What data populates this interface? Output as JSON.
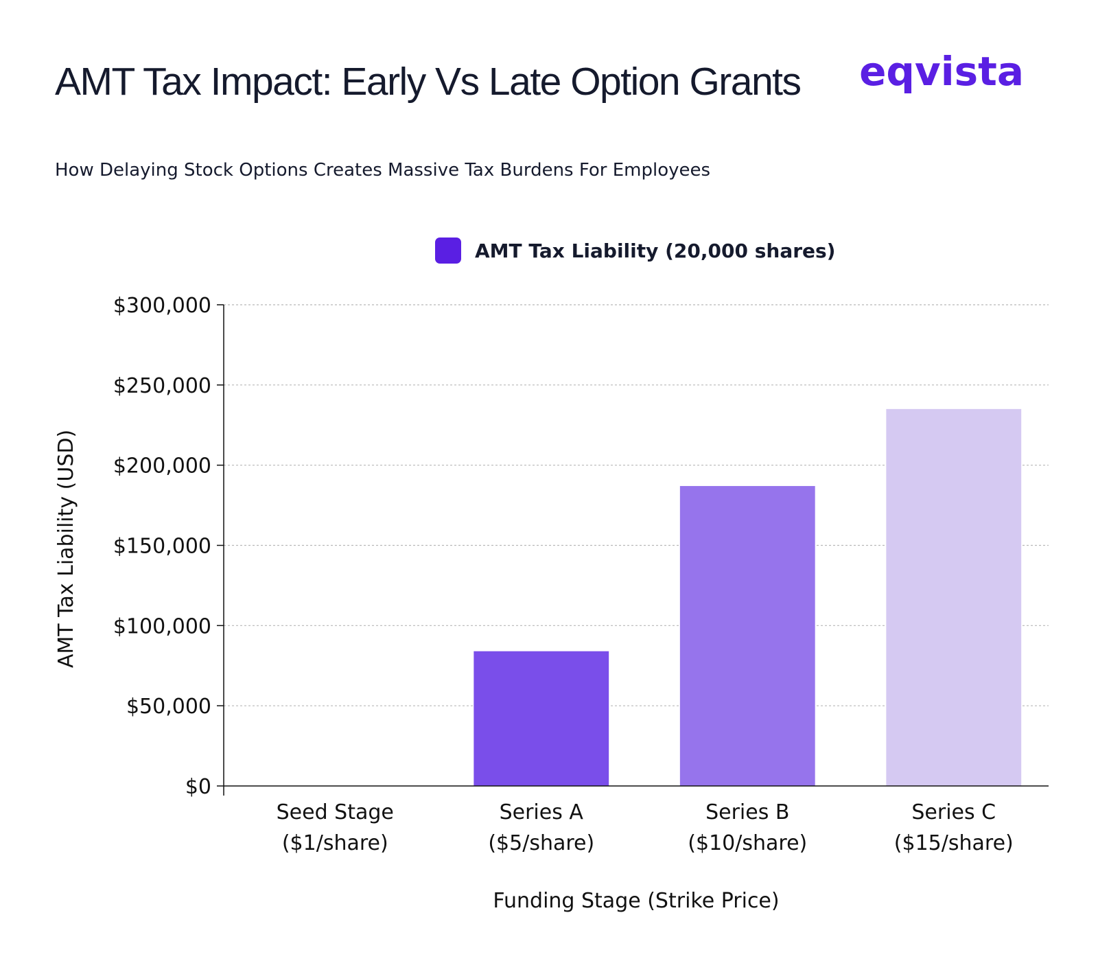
{
  "header": {
    "title": "AMT Tax Impact: Early Vs Late Option Grants",
    "subtitle": "How Delaying Stock Options Creates Massive Tax Burdens For Employees",
    "logo_text": "eqvista"
  },
  "colors": {
    "legend_swatch": "#5a1fe3",
    "bars": [
      "#5a1fe3",
      "#7a4eea",
      "#9674ec",
      "#d5c9f2"
    ],
    "grid": "#b8b8b8",
    "axis": "#111111"
  },
  "chart_data": {
    "type": "bar",
    "title": "AMT Tax Impact: Early Vs Late Option Grants",
    "subtitle": "How Delaying Stock Options Creates Massive Tax Burdens For Employees",
    "categories": [
      [
        "Seed Stage",
        "($1/share)"
      ],
      [
        "Series A",
        "($5/share)"
      ],
      [
        "Series B",
        "($10/share)"
      ],
      [
        "Series C",
        "($15/share)"
      ]
    ],
    "series": [
      {
        "name": "AMT Tax Liability (20,000 shares)",
        "values": [
          0,
          84000,
          187000,
          235000
        ]
      }
    ],
    "xlabel": "Funding Stage (Strike Price)",
    "ylabel": "AMT Tax Liability (USD)",
    "ylim": [
      0,
      300000
    ],
    "yticks": [
      0,
      50000,
      100000,
      150000,
      200000,
      250000,
      300000
    ],
    "ytick_labels": [
      "$0",
      "$50,000",
      "$100,000",
      "$150,000",
      "$200,000",
      "$250,000",
      "$300,000"
    ],
    "grid": true,
    "legend_position": "top-center"
  }
}
